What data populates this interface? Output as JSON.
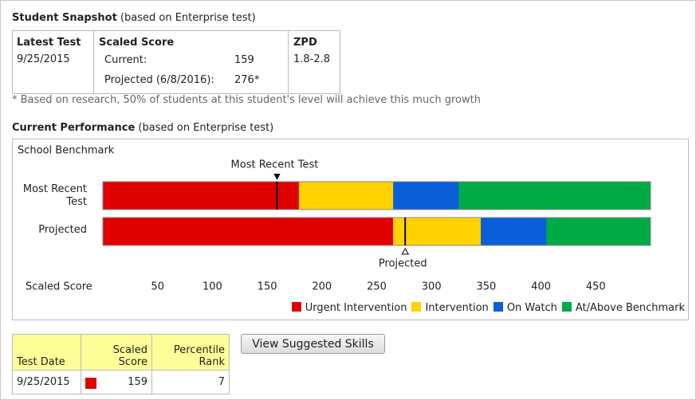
{
  "snapshot": {
    "title": "Student Snapshot",
    "title_note": "(based on Enterprise test)",
    "headers": [
      "Latest Test",
      "Scaled Score",
      "ZPD"
    ],
    "latest_test": "9/25/2015",
    "current_label": "Current:",
    "current_value": 159,
    "projected_label": "Projected (6/8/2016):",
    "projected_value": "276*",
    "zpd": "1.8-2.8",
    "footnote": "* Based on research, 50% of students at this student's level will achieve this much growth"
  },
  "performance": {
    "title": "Current Performance",
    "title_note": "(based on Enterprise test)"
  },
  "chart_data": {
    "type": "stacked-barh",
    "subtitle": "School Benchmark",
    "xlabel": "Scaled Score",
    "categories": [
      "Most Recent Test",
      "Projected"
    ],
    "series": [
      {
        "name": "Urgent Intervention",
        "color": "#e00000",
        "values": [
          179,
          265
        ]
      },
      {
        "name": "Intervention",
        "color": "#ffd200",
        "values": [
          86,
          80
        ]
      },
      {
        "name": "On Watch",
        "color": "#0a5fd8",
        "values": [
          60,
          60
        ]
      },
      {
        "name": "At/Above Benchmark",
        "color": "#00aa44",
        "values": [
          175,
          95
        ]
      }
    ],
    "markers": [
      {
        "label": "Most Recent Test",
        "value": 159
      },
      {
        "label": "Projected",
        "value": 276
      }
    ],
    "xlim": [
      0,
      500
    ],
    "xticks": [
      50,
      100,
      150,
      200,
      250,
      300,
      350,
      400,
      450
    ],
    "legend": "lower right"
  },
  "table": {
    "headers": [
      "Test Date",
      "Scaled Score",
      "Percentile Rank"
    ],
    "rows": [
      [
        "9/25/2015",
        159,
        7
      ]
    ]
  },
  "button": "View Suggested Skills"
}
